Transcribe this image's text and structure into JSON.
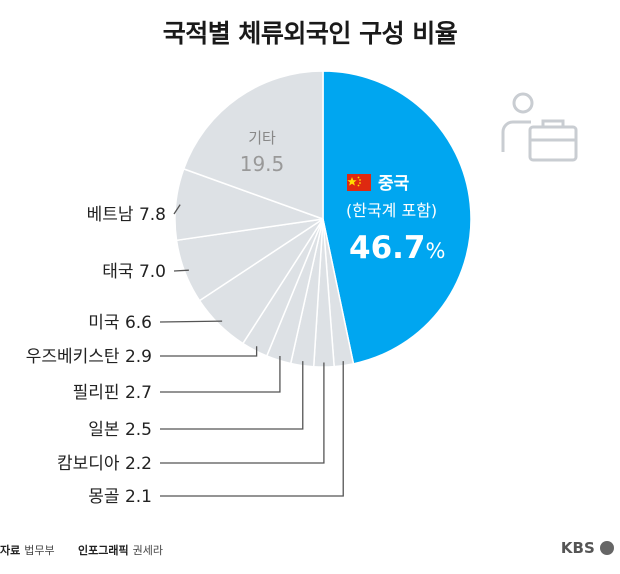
{
  "title": "국적별 체류외국인 구성 비율",
  "chart_data": {
    "type": "pie",
    "title": "국적별 체류외국인 구성 비율",
    "slices": [
      {
        "label": "중국",
        "sublabel": "(한국계 포함)",
        "value": 46.7,
        "display": "46.7",
        "unit": "%",
        "color": "#00a6f0"
      },
      {
        "label": "몽골",
        "value": 2.1,
        "display": "2.1",
        "color": "#dde1e5"
      },
      {
        "label": "캄보디아",
        "value": 2.2,
        "display": "2.2",
        "color": "#dde1e5"
      },
      {
        "label": "일본",
        "value": 2.5,
        "display": "2.5",
        "color": "#dde1e5"
      },
      {
        "label": "필리핀",
        "value": 2.7,
        "display": "2.7",
        "color": "#dde1e5"
      },
      {
        "label": "우즈베키스탄",
        "value": 2.9,
        "display": "2.9",
        "color": "#dde1e5"
      },
      {
        "label": "미국",
        "value": 6.6,
        "display": "6.6",
        "color": "#dde1e5"
      },
      {
        "label": "태국",
        "value": 7.0,
        "display": "7.0",
        "color": "#dde1e5"
      },
      {
        "label": "베트남",
        "value": 7.8,
        "display": "7.8",
        "color": "#dde1e5"
      },
      {
        "label": "기타",
        "value": 19.5,
        "display": "19.5",
        "color": "#dde1e5"
      }
    ]
  },
  "footer": {
    "source_label": "자료",
    "source_value": "법무부",
    "graphic_label": "인포그래픽",
    "graphic_value": "권세라",
    "logo": "KBS"
  },
  "colors": {
    "accent": "#00a6f0",
    "slice_gray": "#dde1e5",
    "leader": "#555555"
  },
  "icons": [
    "china-flag-icon",
    "person-briefcase-icon"
  ]
}
